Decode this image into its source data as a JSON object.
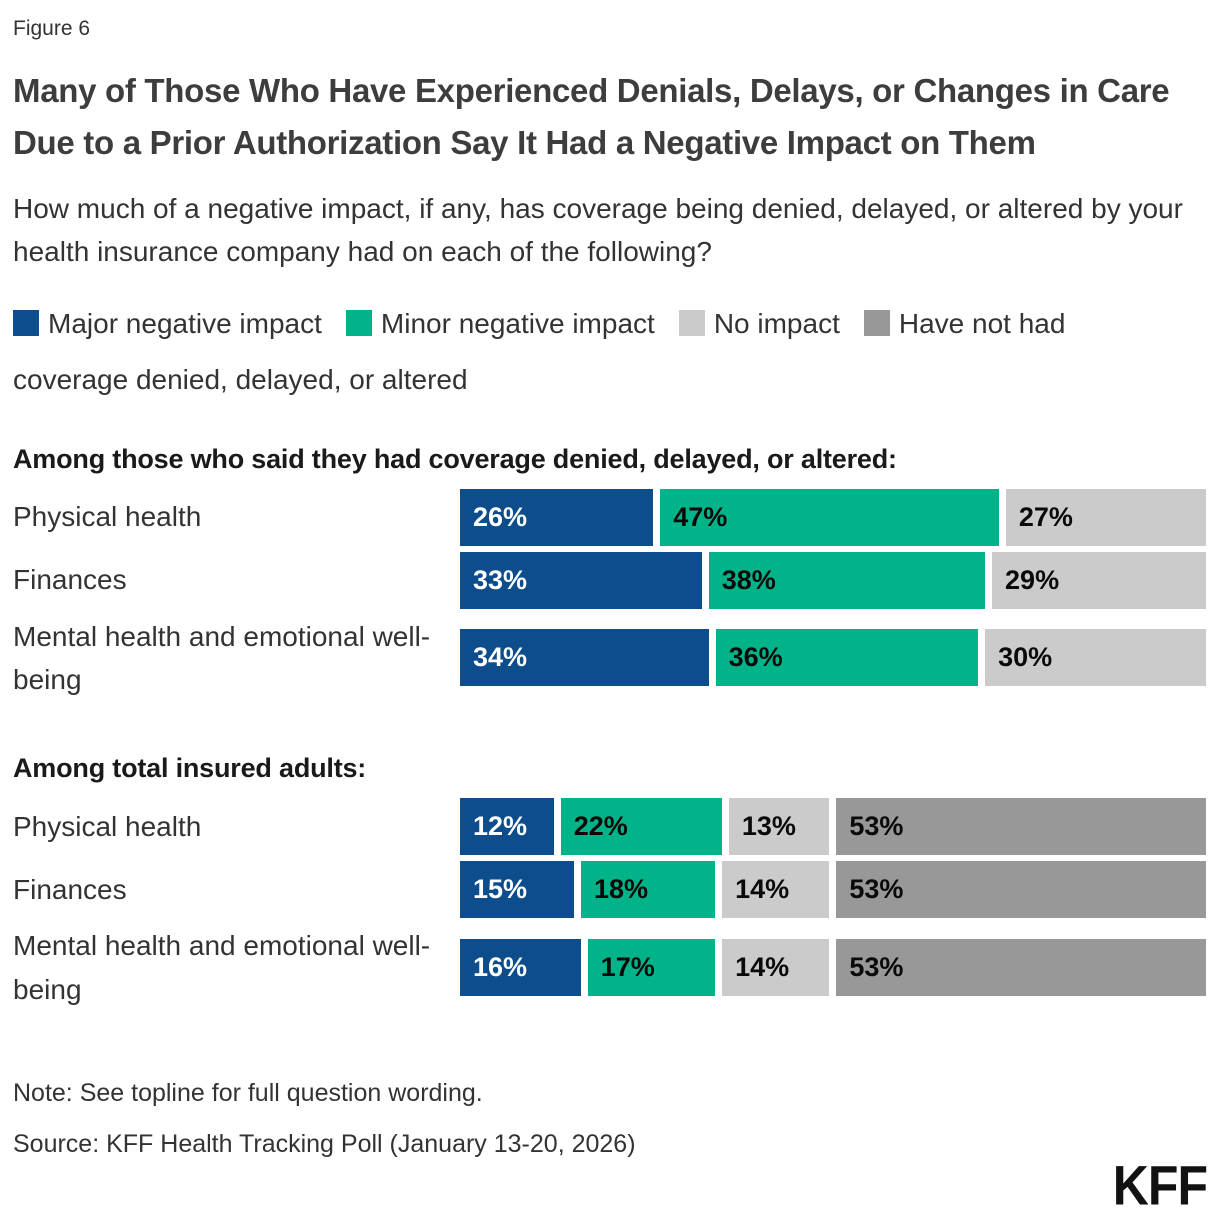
{
  "figure_label": "Figure 6",
  "title": "Many of Those Who Have Experienced Denials, Delays, or Changes in Care Due to a Prior Authorization Say It Had a Negative Impact on Them",
  "subtitle": "How much of a negative impact, if any, has coverage being denied, delayed, or altered by your health insurance company had on each of the following?",
  "legend": [
    {
      "label": "Major negative impact",
      "color": "#0d4d8c",
      "text_color": "#ffffff"
    },
    {
      "label": "Minor negative impact",
      "color": "#00b389",
      "text_color": "#0a0a0a"
    },
    {
      "label": "No impact",
      "color": "#cbcbcb",
      "text_color": "#0a0a0a"
    },
    {
      "label": "Have not had coverage denied, delayed, or altered",
      "color": "#989898",
      "text_color": "#0a0a0a"
    }
  ],
  "chart_data": {
    "type": "bar",
    "orientation": "horizontal",
    "stacked": true,
    "unit": "%",
    "xlim": [
      0,
      100
    ],
    "grid": false,
    "legend_position": "top",
    "series_names": [
      "Major negative impact",
      "Minor negative impact",
      "No impact",
      "Have not had coverage denied, delayed, or altered"
    ],
    "sections": [
      {
        "heading": "Among those who said they had coverage denied, delayed, or altered:",
        "rows": [
          {
            "category": "Physical health",
            "values": [
              26,
              47,
              27
            ]
          },
          {
            "category": "Finances",
            "values": [
              33,
              38,
              29
            ]
          },
          {
            "category": "Mental health and emotional well-being",
            "values": [
              34,
              36,
              30
            ]
          }
        ]
      },
      {
        "heading": "Among total insured adults:",
        "rows": [
          {
            "category": "Physical health",
            "values": [
              12,
              22,
              13,
              53
            ]
          },
          {
            "category": "Finances",
            "values": [
              15,
              18,
              14,
              53
            ]
          },
          {
            "category": "Mental health and emotional well-being",
            "values": [
              16,
              17,
              14,
              53
            ]
          }
        ]
      }
    ]
  },
  "note": "Note: See topline for full question wording.",
  "source": "Source: KFF Health Tracking Poll (January 13-20, 2026)",
  "logo_text": "KFF"
}
